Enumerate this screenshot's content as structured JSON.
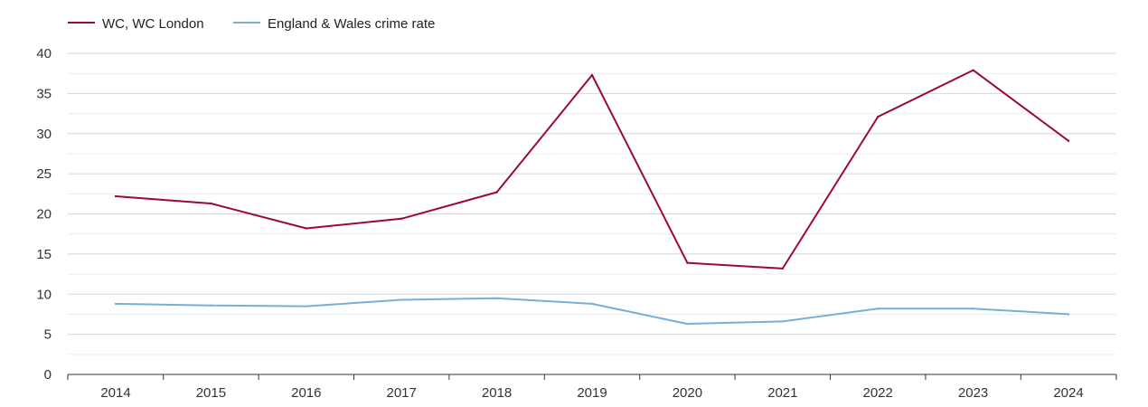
{
  "chart_data": {
    "type": "line",
    "title": "",
    "xlabel": "",
    "ylabel": "",
    "x": [
      "2014",
      "2015",
      "2016",
      "2017",
      "2018",
      "2019",
      "2020",
      "2021",
      "2022",
      "2023",
      "2024"
    ],
    "yticks": [
      "0",
      "5",
      "10",
      "15",
      "20",
      "25",
      "30",
      "35",
      "40"
    ],
    "ylim": [
      0,
      40
    ],
    "grid": true,
    "legend_position": "top-left",
    "series": [
      {
        "name": "WC, WC London",
        "color": "#9b0a36",
        "values": [
          22.2,
          21.3,
          18.2,
          19.4,
          22.7,
          37.3,
          13.9,
          13.2,
          32.1,
          37.9,
          29.1
        ]
      },
      {
        "name": "England & Wales crime rate",
        "color": "#7aafd4",
        "values": [
          8.8,
          8.6,
          8.5,
          9.3,
          9.5,
          8.8,
          6.3,
          6.6,
          8.2,
          8.2,
          7.5
        ]
      }
    ]
  }
}
